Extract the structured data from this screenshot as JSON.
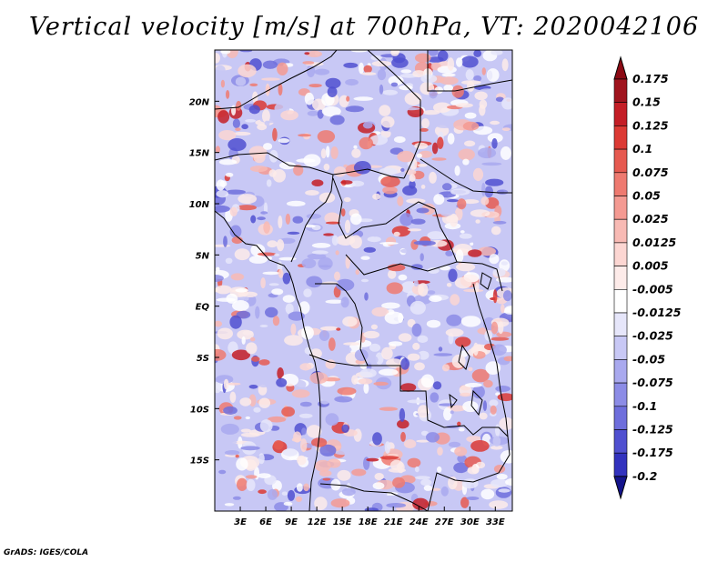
{
  "title": "Vertical velocity [m/s] at 700hPa, VT: 2020042106",
  "footer": "GrADS: IGES/COLA",
  "map": {
    "lon_range": [
      0,
      35
    ],
    "lat_range": [
      -20,
      25
    ],
    "lat_ticks": [
      {
        "value": 20,
        "label": "20N"
      },
      {
        "value": 15,
        "label": "15N"
      },
      {
        "value": 10,
        "label": "10N"
      },
      {
        "value": 5,
        "label": "5N"
      },
      {
        "value": 0,
        "label": "EQ"
      },
      {
        "value": -5,
        "label": "5S"
      },
      {
        "value": -10,
        "label": "10S"
      },
      {
        "value": -15,
        "label": "15S"
      }
    ],
    "lon_ticks": [
      {
        "value": 3,
        "label": "3E"
      },
      {
        "value": 6,
        "label": "6E"
      },
      {
        "value": 9,
        "label": "9E"
      },
      {
        "value": 12,
        "label": "12E"
      },
      {
        "value": 15,
        "label": "15E"
      },
      {
        "value": 18,
        "label": "18E"
      },
      {
        "value": 21,
        "label": "21E"
      },
      {
        "value": 24,
        "label": "24E"
      },
      {
        "value": 27,
        "label": "27E"
      },
      {
        "value": 30,
        "label": "30E"
      },
      {
        "value": 33,
        "label": "33E"
      }
    ]
  },
  "colorbar": {
    "levels": [
      {
        "label": "0.175",
        "color": "#a0141e"
      },
      {
        "label": "0.15",
        "color": "#c41e26"
      },
      {
        "label": "0.125",
        "color": "#dc3a34"
      },
      {
        "label": "0.1",
        "color": "#e65a50"
      },
      {
        "label": "0.075",
        "color": "#ee7a70"
      },
      {
        "label": "0.05",
        "color": "#f49a92"
      },
      {
        "label": "0.025",
        "color": "#f8bab4"
      },
      {
        "label": "0.0125",
        "color": "#fcd6d2"
      },
      {
        "label": "0.005",
        "color": "#fdebe9"
      },
      {
        "label": "-0.005",
        "color": "#ffffff"
      },
      {
        "label": "-0.0125",
        "color": "#e6e6fa"
      },
      {
        "label": "-0.025",
        "color": "#c8c8f5"
      },
      {
        "label": "-0.05",
        "color": "#a9a9ee"
      },
      {
        "label": "-0.075",
        "color": "#8c8ce6"
      },
      {
        "label": "-0.1",
        "color": "#6e6edc"
      },
      {
        "label": "-0.125",
        "color": "#5050d0"
      },
      {
        "label": "-0.175",
        "color": "#3232be"
      },
      {
        "label": "-0.2",
        "color": "#1e1ea8"
      }
    ],
    "top_arrow_color": "#8c0a14",
    "bottom_arrow_color": "#14148c"
  }
}
